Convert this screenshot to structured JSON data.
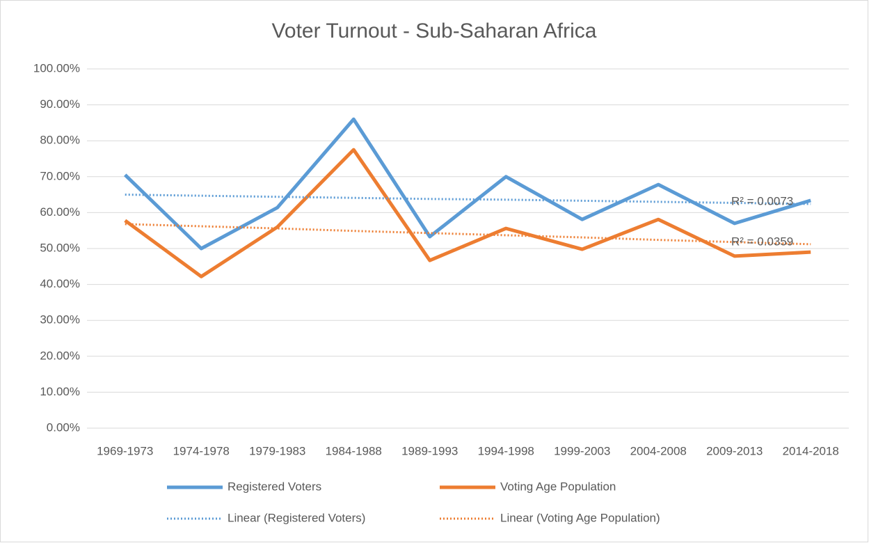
{
  "chart_data": {
    "type": "line",
    "title": "Voter Turnout - Sub-Saharan Africa",
    "categories": [
      "1969-1973",
      "1974-1978",
      "1979-1983",
      "1984-1988",
      "1989-1993",
      "1994-1998",
      "1999-2003",
      "2004-2008",
      "2009-2013",
      "2014-2018"
    ],
    "series": [
      {
        "name": "Registered Voters",
        "color": "#5b9bd5",
        "style": "solid",
        "values": [
          70.5,
          50.0,
          61.4,
          86.0,
          53.3,
          70.0,
          58.1,
          67.8,
          57.0,
          63.4
        ]
      },
      {
        "name": "Voting Age Population",
        "color": "#ed7d31",
        "style": "solid",
        "values": [
          57.8,
          42.2,
          56.0,
          77.5,
          46.7,
          55.6,
          49.8,
          58.1,
          47.9,
          49.0
        ]
      },
      {
        "name": "Linear (Registered Voters)",
        "color": "#5b9bd5",
        "style": "dotted",
        "r_squared_label": "R² = 0.0073",
        "values": [
          65.0,
          64.7,
          64.4,
          64.1,
          63.8,
          63.6,
          63.3,
          63.0,
          62.7,
          62.4
        ]
      },
      {
        "name": "Linear (Voting Age Population)",
        "color": "#ed7d31",
        "style": "dotted",
        "r_squared_label": "R² = 0.0359",
        "values": [
          56.8,
          56.2,
          55.6,
          54.9,
          54.3,
          53.7,
          53.1,
          52.4,
          51.8,
          51.2
        ]
      }
    ],
    "ylim": [
      0,
      100
    ],
    "yticks": [
      {
        "value": 0,
        "label": "0.00%"
      },
      {
        "value": 10,
        "label": "10.00%"
      },
      {
        "value": 20,
        "label": "20.00%"
      },
      {
        "value": 30,
        "label": "30.00%"
      },
      {
        "value": 40,
        "label": "40.00%"
      },
      {
        "value": 50,
        "label": "50.00%"
      },
      {
        "value": 60,
        "label": "60.00%"
      },
      {
        "value": 70,
        "label": "70.00%"
      },
      {
        "value": 80,
        "label": "80.00%"
      },
      {
        "value": 90,
        "label": "90.00%"
      },
      {
        "value": 100,
        "label": "100.00%"
      }
    ],
    "grid": true,
    "legend": "bottom"
  }
}
